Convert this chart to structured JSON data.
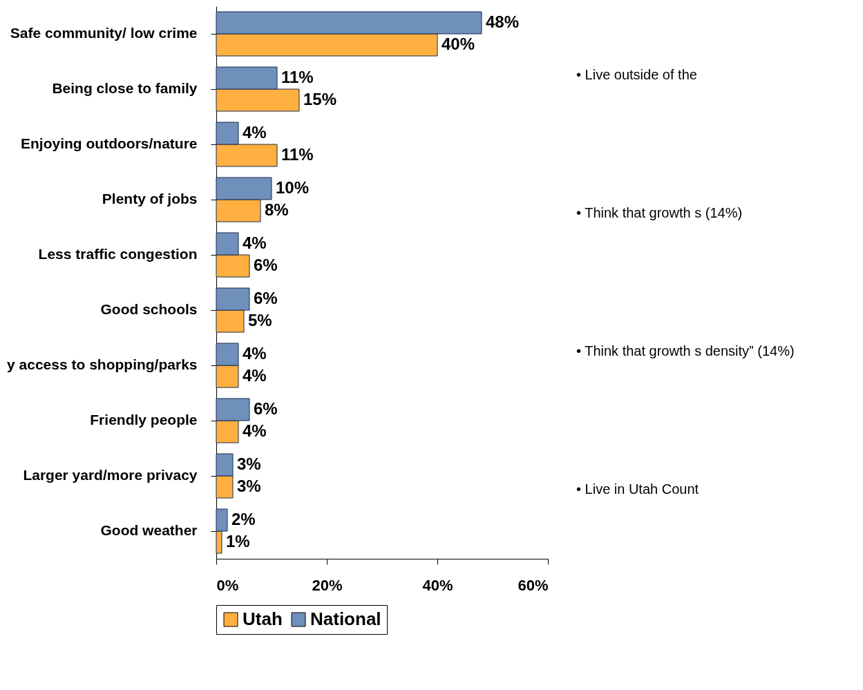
{
  "chart_data": {
    "type": "bar",
    "orientation": "horizontal",
    "categories": [
      "Safe community/ low crime",
      "Being close to family",
      "Enjoying outdoors/nature",
      "Plenty of jobs",
      "Less traffic congestion",
      "Good schools",
      "y access to shopping/parks",
      "Friendly people",
      "Larger yard/more privacy",
      "Good weather"
    ],
    "series": [
      {
        "name": "Utah",
        "color": "#ffb040",
        "values": [
          40,
          15,
          11,
          8,
          6,
          5,
          4,
          4,
          3,
          1
        ],
        "value_labels": [
          "40%",
          "15%",
          "11%",
          "8%",
          "6%",
          "5%",
          "4%",
          "4%",
          "3%",
          "1%"
        ]
      },
      {
        "name": "National",
        "color": "#7090bc",
        "values": [
          48,
          11,
          4,
          10,
          4,
          6,
          4,
          6,
          3,
          2
        ],
        "value_labels": [
          "48%",
          "11%",
          "4%",
          "10%",
          "4%",
          "6%",
          "4%",
          "6%",
          "3%",
          "2%"
        ]
      }
    ],
    "xlim": [
      0,
      60
    ],
    "xticks": [
      {
        "value": 0,
        "label": "0%"
      },
      {
        "value": 20,
        "label": "20%"
      },
      {
        "value": 40,
        "label": "40%"
      },
      {
        "value": 60,
        "label": "60%"
      }
    ],
    "legend": "bottom",
    "grid": false,
    "annotations": [
      "• Live outside of the",
      "• Think that growth s (14%)",
      "• Think that growth s density” (14%)",
      "• Live in Utah Count"
    ]
  }
}
